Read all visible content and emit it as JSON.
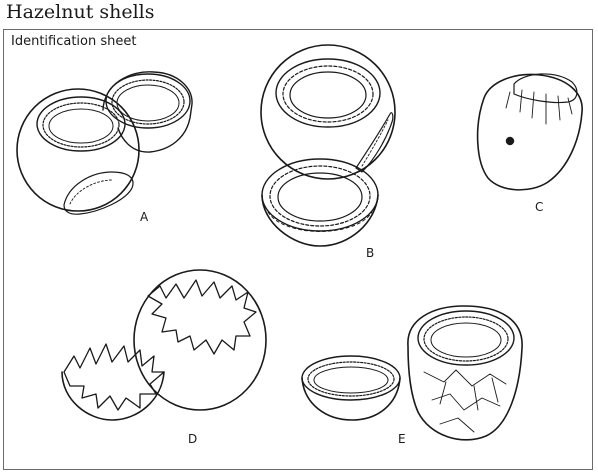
{
  "page": {
    "title": "Hazelnut shells",
    "subtitle": "Identification sheet"
  },
  "specimens": [
    {
      "id": "A",
      "label": "A"
    },
    {
      "id": "B",
      "label": "B"
    },
    {
      "id": "C",
      "label": "C"
    },
    {
      "id": "D",
      "label": "D"
    },
    {
      "id": "E",
      "label": "E"
    }
  ]
}
